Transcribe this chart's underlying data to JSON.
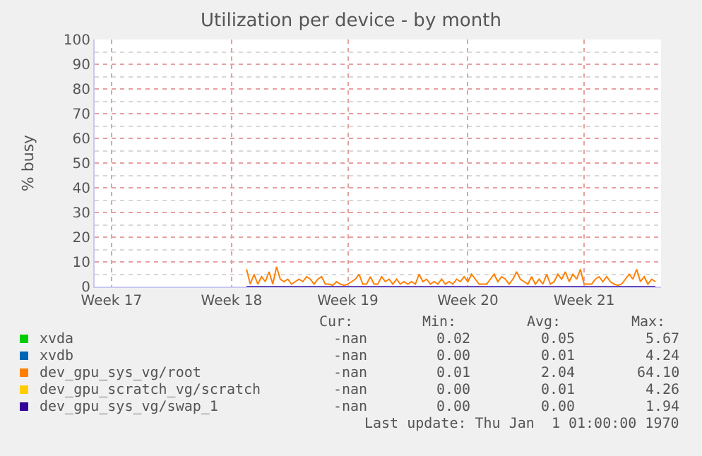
{
  "chart_data": {
    "type": "line",
    "title": "Utilization per device - by month",
    "ylabel": "% busy",
    "categories": [
      null,
      null,
      null,
      null,
      "Week 17",
      null,
      null,
      null,
      null,
      null,
      null,
      null,
      null,
      null,
      null,
      null,
      null,
      null,
      null,
      null,
      null,
      null,
      null,
      null,
      null,
      null,
      null,
      null,
      null,
      null,
      null,
      null,
      null,
      null,
      null,
      null,
      "Week 18",
      null,
      null,
      null,
      null,
      null,
      null,
      null,
      null,
      null,
      null,
      null,
      null,
      null,
      null,
      null,
      null,
      null,
      null,
      null,
      null,
      null,
      null,
      null,
      null,
      null,
      null,
      null,
      null,
      null,
      null,
      "Week 19",
      null,
      null,
      null,
      null,
      null,
      null,
      null,
      null,
      null,
      null,
      null,
      null,
      null,
      null,
      null,
      null,
      null,
      null,
      null,
      null,
      null,
      null,
      null,
      null,
      null,
      null,
      null,
      null,
      null,
      null,
      null,
      "Week 20",
      null,
      null,
      null,
      null,
      null,
      null,
      null,
      null,
      null,
      null,
      null,
      null,
      null,
      null,
      null,
      null,
      null,
      null,
      null,
      null,
      null,
      null,
      null,
      null,
      null,
      null,
      null,
      null,
      null,
      null,
      "Week 21",
      null,
      null,
      null,
      null,
      null,
      null,
      null,
      null,
      null,
      null,
      null,
      null,
      null,
      null,
      null,
      null,
      null,
      null,
      null,
      null
    ],
    "ylim": [
      0,
      100
    ],
    "yticks": [
      0,
      10,
      20,
      30,
      40,
      50,
      60,
      70,
      80,
      90,
      100
    ],
    "grid": true,
    "legend": "bottom left",
    "series": [
      {
        "name": "xvda",
        "color": "#00cc00",
        "values": [
          null,
          null,
          null,
          null,
          null,
          null,
          null,
          null,
          null,
          null,
          null,
          null,
          null,
          null,
          null,
          null,
          null,
          null,
          null,
          null,
          null,
          null,
          null,
          null,
          null,
          null,
          null,
          null,
          null,
          null,
          null,
          null,
          null,
          null,
          null,
          null,
          null,
          null,
          null,
          null,
          null,
          null,
          null,
          null,
          null,
          null,
          null,
          null,
          null,
          null,
          null,
          null,
          null,
          null,
          null,
          null,
          null,
          null,
          null,
          null,
          null,
          null,
          null,
          null,
          null,
          null,
          null,
          null,
          null,
          null,
          null,
          null,
          null,
          null,
          null,
          null,
          null,
          null,
          null,
          null,
          null,
          null,
          null,
          null,
          null,
          null,
          null,
          null,
          null,
          null,
          null,
          null,
          null,
          null,
          null,
          null,
          null,
          null,
          null,
          null,
          null,
          null,
          null,
          null,
          null,
          null,
          null,
          null,
          null,
          null,
          null,
          null,
          null,
          null,
          null,
          null,
          null,
          null,
          null,
          null,
          null,
          null,
          null,
          null,
          null,
          null,
          null,
          null,
          null,
          null,
          null,
          null,
          null,
          null,
          null,
          null,
          null,
          null,
          null,
          null,
          null,
          null,
          null,
          null,
          null,
          null,
          null,
          null,
          null,
          null,
          null
        ]
      },
      {
        "name": "xvdb",
        "color": "#0066b3",
        "values": [
          null,
          null,
          null,
          null,
          null,
          null,
          null,
          null,
          null,
          null,
          null,
          null,
          null,
          null,
          null,
          null,
          null,
          null,
          null,
          null,
          null,
          null,
          null,
          null,
          null,
          null,
          null,
          null,
          null,
          null,
          null,
          null,
          null,
          null,
          null,
          null,
          null,
          null,
          null,
          null,
          null,
          null,
          null,
          null,
          null,
          null,
          null,
          null,
          null,
          null,
          null,
          null,
          null,
          null,
          null,
          null,
          null,
          null,
          null,
          null,
          null,
          null,
          null,
          null,
          null,
          null,
          null,
          null,
          null,
          null,
          null,
          null,
          null,
          null,
          null,
          null,
          null,
          null,
          null,
          null,
          null,
          null,
          null,
          null,
          null,
          null,
          null,
          null,
          null,
          null,
          null,
          null,
          null,
          null,
          null,
          null,
          null,
          null,
          null,
          null,
          null,
          null,
          null,
          null,
          null,
          null,
          null,
          null,
          null,
          null,
          null,
          null,
          null,
          null,
          null,
          null,
          null,
          null,
          null,
          null,
          null,
          null,
          null,
          null,
          null,
          null,
          null,
          null,
          null,
          null,
          null,
          null,
          null,
          null,
          null,
          null,
          null,
          null,
          null,
          null,
          null,
          null,
          null,
          null,
          null,
          null,
          null,
          null,
          null,
          null,
          null
        ]
      },
      {
        "name": "dev_gpu_sys_vg/root",
        "color": "#ff8000",
        "values": [
          null,
          null,
          null,
          null,
          null,
          null,
          null,
          null,
          null,
          null,
          null,
          null,
          null,
          null,
          null,
          null,
          null,
          null,
          null,
          null,
          null,
          null,
          null,
          null,
          null,
          null,
          null,
          null,
          null,
          null,
          null,
          null,
          null,
          null,
          null,
          null,
          null,
          null,
          null,
          null,
          7,
          1,
          5,
          1,
          4,
          2,
          6,
          1,
          8,
          3,
          2,
          3,
          1,
          2,
          3,
          2,
          4,
          3,
          1,
          3,
          4,
          1,
          1,
          0.5,
          2,
          1,
          0.5,
          1,
          2,
          3,
          5,
          1,
          1,
          4,
          1,
          1,
          4,
          2,
          3,
          1,
          3,
          1,
          2,
          1,
          2,
          1,
          5,
          2,
          3,
          1,
          2,
          1,
          3,
          1,
          2,
          1,
          3,
          2,
          4,
          2,
          5,
          3,
          1,
          1,
          1,
          3,
          5,
          2,
          4,
          3,
          1,
          3,
          6,
          3,
          2,
          1,
          4,
          1,
          3,
          1,
          5,
          1,
          2,
          5,
          3,
          6,
          2,
          5,
          3,
          7,
          1,
          1,
          1,
          3,
          4,
          2,
          4,
          2,
          1,
          0.5,
          1,
          3,
          5,
          3,
          7,
          2,
          4,
          1,
          3,
          2,
          null
        ]
      },
      {
        "name": "dev_gpu_scratch_vg/scratch",
        "color": "#ffcc00",
        "values": [
          null,
          null,
          null,
          null,
          null,
          null,
          null,
          null,
          null,
          null,
          null,
          null,
          null,
          null,
          null,
          null,
          null,
          null,
          null,
          null,
          null,
          null,
          null,
          null,
          null,
          null,
          null,
          null,
          null,
          null,
          null,
          null,
          null,
          null,
          null,
          null,
          null,
          null,
          null,
          null,
          null,
          null,
          null,
          null,
          null,
          null,
          null,
          null,
          null,
          null,
          null,
          null,
          null,
          null,
          null,
          null,
          null,
          null,
          null,
          null,
          null,
          null,
          null,
          null,
          null,
          null,
          null,
          null,
          null,
          null,
          null,
          null,
          null,
          null,
          null,
          null,
          null,
          null,
          null,
          null,
          null,
          null,
          null,
          null,
          null,
          null,
          null,
          null,
          null,
          null,
          null,
          null,
          null,
          null,
          null,
          null,
          null,
          null,
          null,
          null,
          null,
          null,
          null,
          null,
          null,
          null,
          null,
          null,
          null,
          null,
          null,
          null,
          null,
          null,
          null,
          null,
          null,
          null,
          null,
          null,
          null,
          null,
          null,
          null,
          null,
          null,
          null,
          null,
          null,
          null,
          null,
          null,
          null,
          null,
          null,
          null,
          null,
          null,
          null,
          null,
          null,
          null,
          null,
          null,
          null,
          null,
          null,
          null,
          null,
          null,
          null
        ]
      },
      {
        "name": "dev_gpu_sys_vg/swap_1",
        "color": "#330099",
        "values": [
          null,
          null,
          null,
          null,
          null,
          null,
          null,
          null,
          null,
          null,
          null,
          null,
          null,
          null,
          null,
          null,
          null,
          null,
          null,
          null,
          null,
          null,
          null,
          null,
          null,
          null,
          null,
          null,
          null,
          null,
          null,
          null,
          null,
          null,
          null,
          null,
          null,
          null,
          null,
          null,
          0,
          0,
          0,
          0,
          0,
          0,
          0,
          0,
          0,
          0,
          0,
          0,
          0,
          0,
          0,
          0,
          0,
          0,
          0,
          0,
          0,
          0,
          0,
          0,
          0,
          0,
          0,
          0,
          0,
          0,
          0,
          0,
          0,
          0,
          0,
          0,
          0,
          0,
          0,
          0,
          0,
          0,
          0,
          0,
          0,
          0,
          0,
          0,
          0,
          0,
          0,
          0,
          0,
          0,
          0,
          0,
          0,
          0,
          0,
          0,
          0,
          0,
          0,
          0,
          0,
          0,
          0,
          0,
          0,
          0,
          0,
          0,
          0,
          0,
          0,
          0,
          0,
          0,
          0,
          0,
          0,
          0,
          0,
          0,
          0,
          0,
          0,
          0,
          0,
          0,
          0,
          0,
          0,
          0,
          0,
          0,
          0,
          0,
          0,
          0,
          0,
          0,
          0,
          0,
          0,
          0,
          0,
          0,
          0,
          0,
          null
        ]
      }
    ],
    "annotations": [
      "Cur:",
      "Min:",
      "Avg:",
      "Max:",
      "-nan",
      "0.02",
      "0.05",
      "5.67",
      "-nan",
      "0.00",
      "0.01",
      "4.24",
      "-nan",
      "0.01",
      "2.04",
      "64.10",
      "-nan",
      "0.00",
      "0.01",
      "4.26",
      "-nan",
      "0.00",
      "0.00",
      "1.94",
      "Last update: Thu Jan  1 01:00:00 1970"
    ]
  }
}
